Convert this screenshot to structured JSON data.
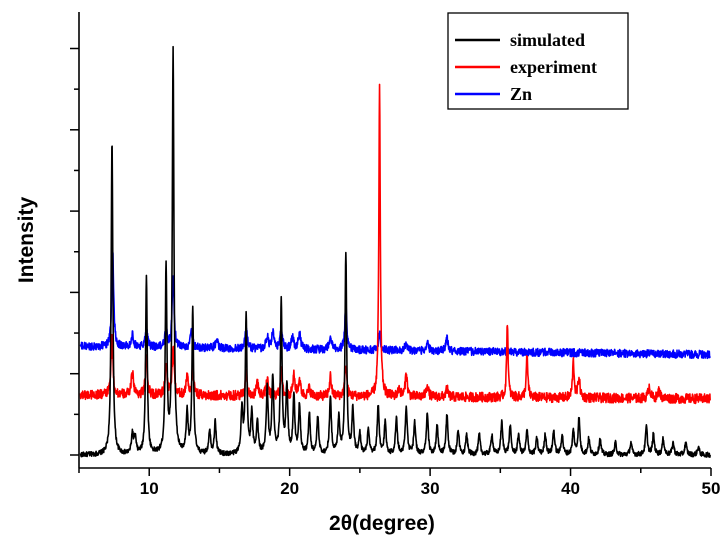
{
  "chart_data": {
    "type": "line",
    "xlabel": "2θ(degree)",
    "ylabel": "Intensity",
    "xlim": [
      5,
      50
    ],
    "xticks": [
      10,
      20,
      30,
      40,
      50
    ],
    "ylim": [
      0,
      100
    ],
    "ytick_labels_shown": false,
    "legend_position": "top-right",
    "series": [
      {
        "name": "simulated",
        "color": "#000000",
        "baseline": 0,
        "noise": 0.6,
        "peaks": [
          [
            7.35,
            78,
            0.07
          ],
          [
            8.8,
            5,
            0.08
          ],
          [
            9.0,
            4,
            0.08
          ],
          [
            9.8,
            44,
            0.07
          ],
          [
            11.2,
            46,
            0.07
          ],
          [
            11.7,
            100,
            0.07
          ],
          [
            12.7,
            10,
            0.08
          ],
          [
            13.1,
            36,
            0.07
          ],
          [
            14.3,
            6,
            0.08
          ],
          [
            14.7,
            8,
            0.08
          ],
          [
            16.6,
            11,
            0.08
          ],
          [
            16.9,
            34,
            0.07
          ],
          [
            17.3,
            10,
            0.08
          ],
          [
            17.7,
            8,
            0.08
          ],
          [
            18.4,
            16,
            0.08
          ],
          [
            18.8,
            19,
            0.08
          ],
          [
            19.4,
            38,
            0.07
          ],
          [
            19.8,
            17,
            0.08
          ],
          [
            20.3,
            14,
            0.08
          ],
          [
            20.7,
            12,
            0.08
          ],
          [
            21.4,
            10,
            0.08
          ],
          [
            22.0,
            9,
            0.08
          ],
          [
            22.9,
            14,
            0.08
          ],
          [
            23.5,
            9,
            0.08
          ],
          [
            24.0,
            50,
            0.07
          ],
          [
            24.5,
            11,
            0.08
          ],
          [
            25.0,
            5,
            0.08
          ],
          [
            25.6,
            6,
            0.08
          ],
          [
            26.3,
            12,
            0.08
          ],
          [
            26.8,
            8,
            0.08
          ],
          [
            27.6,
            9,
            0.08
          ],
          [
            28.3,
            12,
            0.08
          ],
          [
            28.9,
            8,
            0.08
          ],
          [
            29.8,
            10,
            0.08
          ],
          [
            30.5,
            7,
            0.08
          ],
          [
            31.2,
            10,
            0.08
          ],
          [
            32.0,
            6,
            0.08
          ],
          [
            32.6,
            5,
            0.08
          ],
          [
            33.5,
            5,
            0.08
          ],
          [
            34.4,
            5,
            0.08
          ],
          [
            35.1,
            8,
            0.08
          ],
          [
            35.7,
            7,
            0.08
          ],
          [
            36.3,
            5,
            0.08
          ],
          [
            36.9,
            6,
            0.08
          ],
          [
            37.6,
            4,
            0.08
          ],
          [
            38.2,
            5,
            0.08
          ],
          [
            38.8,
            6,
            0.08
          ],
          [
            39.4,
            5,
            0.08
          ],
          [
            40.2,
            6,
            0.08
          ],
          [
            40.6,
            9,
            0.08
          ],
          [
            41.3,
            4,
            0.08
          ],
          [
            42.1,
            4,
            0.08
          ],
          [
            43.2,
            3,
            0.08
          ],
          [
            44.3,
            3,
            0.08
          ],
          [
            45.4,
            7,
            0.08
          ],
          [
            45.9,
            5,
            0.08
          ],
          [
            46.6,
            4,
            0.08
          ],
          [
            47.3,
            3,
            0.08
          ],
          [
            48.2,
            3,
            0.08
          ],
          [
            49.1,
            2,
            0.08
          ]
        ]
      },
      {
        "name": "experiment",
        "color": "#ff0000",
        "baseline": 15,
        "baseline_end": 14,
        "noise": 1.2,
        "peaks": [
          [
            7.35,
            14,
            0.08
          ],
          [
            8.8,
            6,
            0.09
          ],
          [
            9.8,
            10,
            0.08
          ],
          [
            11.2,
            8,
            0.08
          ],
          [
            11.7,
            12,
            0.08
          ],
          [
            12.7,
            5,
            0.09
          ],
          [
            13.1,
            6,
            0.08
          ],
          [
            16.9,
            6,
            0.08
          ],
          [
            17.7,
            3,
            0.09
          ],
          [
            18.4,
            4,
            0.09
          ],
          [
            19.4,
            6,
            0.08
          ],
          [
            20.3,
            5,
            0.09
          ],
          [
            20.7,
            4,
            0.09
          ],
          [
            21.4,
            2,
            0.09
          ],
          [
            22.9,
            5,
            0.08
          ],
          [
            24.0,
            8,
            0.08
          ],
          [
            26.4,
            77,
            0.06
          ],
          [
            27.8,
            2,
            0.09
          ],
          [
            28.3,
            6,
            0.08
          ],
          [
            29.8,
            3,
            0.09
          ],
          [
            31.2,
            2,
            0.09
          ],
          [
            35.5,
            19,
            0.06
          ],
          [
            36.9,
            10,
            0.07
          ],
          [
            40.2,
            9,
            0.07
          ],
          [
            40.6,
            5,
            0.08
          ],
          [
            45.6,
            3,
            0.09
          ],
          [
            46.3,
            2,
            0.09
          ]
        ]
      },
      {
        "name": "Zn",
        "color": "#0000ff",
        "baseline": 27,
        "baseline_end": 25,
        "noise": 1.0,
        "peaks": [
          [
            7.4,
            24,
            0.08
          ],
          [
            8.8,
            3,
            0.1
          ],
          [
            9.8,
            5,
            0.09
          ],
          [
            11.2,
            5,
            0.09
          ],
          [
            11.7,
            18,
            0.08
          ],
          [
            13.0,
            4,
            0.09
          ],
          [
            14.8,
            2,
            0.1
          ],
          [
            16.9,
            5,
            0.09
          ],
          [
            18.4,
            3,
            0.1
          ],
          [
            18.8,
            4,
            0.09
          ],
          [
            19.4,
            5,
            0.09
          ],
          [
            20.2,
            3,
            0.1
          ],
          [
            20.7,
            4,
            0.1
          ],
          [
            22.9,
            3,
            0.1
          ],
          [
            24.0,
            12,
            0.08
          ],
          [
            26.4,
            4,
            0.09
          ],
          [
            28.3,
            2,
            0.1
          ],
          [
            29.8,
            2,
            0.1
          ],
          [
            31.2,
            3,
            0.1
          ]
        ]
      }
    ]
  }
}
